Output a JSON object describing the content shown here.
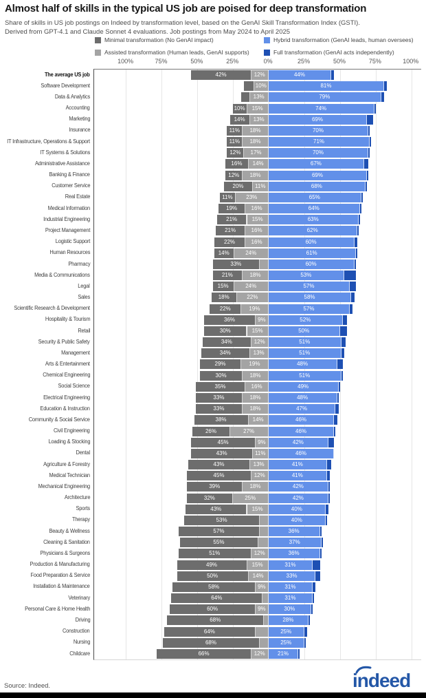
{
  "header": {
    "title": "Almost half of skills in the typical US job are poised for deep transformation",
    "subtitle_line1": "Share of skills in US job postings on Indeed by transformation level, based on the GenAI Skill Transformation Index (GSTI).",
    "subtitle_line2": "Derived from GPT-4.1 and Claude Sonnet 4 evaluations. Job postings from May 2024 to April 2025"
  },
  "legend": {
    "items": [
      {
        "label": "Minimal transformation (No GenAI impact)",
        "color": "#6d6d6d"
      },
      {
        "label": "Assisted transformation (Human leads, GenAI supports)",
        "color": "#a4a4a4"
      },
      {
        "label": "Hybrid transformation (GenAI leads, human oversees)",
        "color": "#6290e9"
      },
      {
        "label": "Full transformation (GenAI acts independently)",
        "color": "#1e50b3"
      }
    ]
  },
  "chart_data": {
    "type": "bar",
    "orientation": "horizontal",
    "stacked": true,
    "diverging": true,
    "title": "Almost half of skills in the typical US job are poised for deep transformation",
    "unit": "%",
    "axis": {
      "range": [
        -100,
        100
      ],
      "ticks": [
        {
          "v": -100,
          "label": "100%"
        },
        {
          "v": -75,
          "label": "75%"
        },
        {
          "v": -50,
          "label": "50%"
        },
        {
          "v": -25,
          "label": "25%"
        },
        {
          "v": 0,
          "label": "0%"
        },
        {
          "v": 25,
          "label": "25%"
        },
        {
          "v": 50,
          "label": "50%"
        },
        {
          "v": 75,
          "label": "75%"
        },
        {
          "v": 100,
          "label": "100%"
        }
      ]
    },
    "series": [
      {
        "name": "Minimal transformation (No GenAI impact)",
        "color": "#6d6d6d",
        "side": "left"
      },
      {
        "name": "Assisted transformation (Human leads, GenAI supports)",
        "color": "#a4a4a4",
        "side": "left"
      },
      {
        "name": "Hybrid transformation (GenAI leads, human oversees)",
        "color": "#6290e9",
        "side": "right"
      },
      {
        "name": "Full transformation (GenAI acts independently)",
        "color": "#1e50b3",
        "side": "right"
      }
    ],
    "rows": [
      {
        "label": "The average US job",
        "bold": true,
        "values": [
          42,
          12,
          44,
          2
        ],
        "labels": [
          "42%",
          "12%",
          "44%",
          ""
        ]
      },
      {
        "label": "Software Development",
        "values": [
          7,
          10,
          81,
          2
        ],
        "labels": [
          "",
          "10%",
          "81%",
          ""
        ]
      },
      {
        "label": "Data & Analytics",
        "values": [
          6,
          13,
          79,
          2
        ],
        "labels": [
          "",
          "13%",
          "79%",
          ""
        ]
      },
      {
        "label": "Accounting",
        "values": [
          10,
          15,
          74,
          1
        ],
        "labels": [
          "10%",
          "15%",
          "74%",
          ""
        ]
      },
      {
        "label": "Marketing",
        "values": [
          14,
          13,
          69,
          4
        ],
        "labels": [
          "14%",
          "13%",
          "69%",
          ""
        ]
      },
      {
        "label": "Insurance",
        "values": [
          11,
          18,
          70,
          1
        ],
        "labels": [
          "11%",
          "18%",
          "70%",
          ""
        ]
      },
      {
        "label": "IT Infrastructure, Operations & Support",
        "values": [
          11,
          18,
          71,
          1
        ],
        "labels": [
          "11%",
          "18%",
          "71%",
          ""
        ]
      },
      {
        "label": "IT Systems & Solutions",
        "values": [
          12,
          17,
          70,
          1
        ],
        "labels": [
          "12%",
          "17%",
          "70%",
          ""
        ]
      },
      {
        "label": "Administrative Assistance",
        "values": [
          16,
          14,
          67,
          3
        ],
        "labels": [
          "16%",
          "14%",
          "67%",
          ""
        ]
      },
      {
        "label": "Banking & Finance",
        "values": [
          12,
          18,
          69,
          1
        ],
        "labels": [
          "12%",
          "18%",
          "69%",
          ""
        ]
      },
      {
        "label": "Customer Service",
        "values": [
          20,
          11,
          68,
          1
        ],
        "labels": [
          "20%",
          "11%",
          "68%",
          ""
        ]
      },
      {
        "label": "Real Estate",
        "values": [
          11,
          23,
          65,
          1
        ],
        "labels": [
          "11%",
          "23%",
          "65%",
          ""
        ]
      },
      {
        "label": "Medical Information",
        "values": [
          19,
          16,
          64,
          1
        ],
        "labels": [
          "19%",
          "16%",
          "64%",
          ""
        ]
      },
      {
        "label": "Industrial Engineering",
        "values": [
          21,
          15,
          63,
          1
        ],
        "labels": [
          "21%",
          "15%",
          "63%",
          ""
        ]
      },
      {
        "label": "Project Management",
        "values": [
          21,
          16,
          62,
          1
        ],
        "labels": [
          "21%",
          "16%",
          "62%",
          ""
        ]
      },
      {
        "label": "Logistic Support",
        "values": [
          22,
          16,
          60,
          2
        ],
        "labels": [
          "22%",
          "16%",
          "60%",
          ""
        ]
      },
      {
        "label": "Human Resources",
        "values": [
          14,
          24,
          61,
          1
        ],
        "labels": [
          "14%",
          "24%",
          "61%",
          ""
        ]
      },
      {
        "label": "Pharmacy",
        "values": [
          33,
          6,
          60,
          1
        ],
        "labels": [
          "33%",
          "",
          "60%",
          ""
        ]
      },
      {
        "label": "Media & Communications",
        "values": [
          21,
          18,
          53,
          8
        ],
        "labels": [
          "21%",
          "18%",
          "53%",
          ""
        ]
      },
      {
        "label": "Legal",
        "values": [
          15,
          24,
          57,
          4
        ],
        "labels": [
          "15%",
          "24%",
          "57%",
          ""
        ]
      },
      {
        "label": "Sales",
        "values": [
          18,
          22,
          58,
          2
        ],
        "labels": [
          "18%",
          "22%",
          "58%",
          ""
        ]
      },
      {
        "label": "Scientific Research & Development",
        "values": [
          22,
          19,
          57,
          2
        ],
        "labels": [
          "22%",
          "19%",
          "57%",
          ""
        ]
      },
      {
        "label": "Hospitality & Tourism",
        "values": [
          36,
          9,
          52,
          3
        ],
        "labels": [
          "36%",
          "9%",
          "52%",
          ""
        ]
      },
      {
        "label": "Retail",
        "values": [
          30,
          15,
          50,
          5
        ],
        "labels": [
          "30%",
          "15%",
          "50%",
          ""
        ]
      },
      {
        "label": "Security & Public Safety",
        "values": [
          34,
          12,
          51,
          3
        ],
        "labels": [
          "34%",
          "12%",
          "51%",
          ""
        ]
      },
      {
        "label": "Management",
        "values": [
          34,
          13,
          51,
          2
        ],
        "labels": [
          "34%",
          "13%",
          "51%",
          ""
        ]
      },
      {
        "label": "Arts & Entertainment",
        "values": [
          29,
          19,
          48,
          4
        ],
        "labels": [
          "29%",
          "19%",
          "48%",
          ""
        ]
      },
      {
        "label": "Chemical Engineering",
        "values": [
          30,
          18,
          51,
          1
        ],
        "labels": [
          "30%",
          "18%",
          "51%",
          ""
        ]
      },
      {
        "label": "Social Science",
        "values": [
          35,
          16,
          49,
          1
        ],
        "labels": [
          "35%",
          "16%",
          "49%",
          ""
        ]
      },
      {
        "label": "Electrical Engineering",
        "values": [
          33,
          18,
          48,
          1
        ],
        "labels": [
          "33%",
          "18%",
          "48%",
          ""
        ]
      },
      {
        "label": "Education & Instruction",
        "values": [
          33,
          18,
          47,
          2
        ],
        "labels": [
          "33%",
          "18%",
          "47%",
          ""
        ]
      },
      {
        "label": "Community & Social Service",
        "values": [
          38,
          14,
          46,
          2
        ],
        "labels": [
          "38%",
          "14%",
          "46%",
          ""
        ]
      },
      {
        "label": "Civil Engineering",
        "values": [
          26,
          27,
          46,
          1
        ],
        "labels": [
          "26%",
          "27%",
          "46%",
          ""
        ]
      },
      {
        "label": "Loading & Stocking",
        "values": [
          45,
          9,
          42,
          4
        ],
        "labels": [
          "45%",
          "9%",
          "42%",
          ""
        ]
      },
      {
        "label": "Dental",
        "values": [
          43,
          11,
          46,
          0
        ],
        "labels": [
          "43%",
          "11%",
          "46%",
          ""
        ]
      },
      {
        "label": "Agriculture & Forestry",
        "values": [
          43,
          13,
          41,
          3
        ],
        "labels": [
          "43%",
          "13%",
          "41%",
          ""
        ]
      },
      {
        "label": "Medical Technician",
        "values": [
          45,
          12,
          41,
          2
        ],
        "labels": [
          "45%",
          "12%",
          "41%",
          ""
        ]
      },
      {
        "label": "Mechanical Engineering",
        "values": [
          39,
          18,
          42,
          1
        ],
        "labels": [
          "39%",
          "18%",
          "42%",
          ""
        ]
      },
      {
        "label": "Architecture",
        "values": [
          32,
          25,
          42,
          1
        ],
        "labels": [
          "32%",
          "25%",
          "42%",
          ""
        ]
      },
      {
        "label": "Sports",
        "values": [
          43,
          15,
          40,
          2
        ],
        "labels": [
          "43%",
          "15%",
          "40%",
          ""
        ]
      },
      {
        "label": "Therapy",
        "values": [
          53,
          6,
          40,
          1
        ],
        "labels": [
          "53%",
          "",
          "40%",
          ""
        ]
      },
      {
        "label": "Beauty & Wellness",
        "values": [
          57,
          6,
          36,
          1
        ],
        "labels": [
          "57%",
          "",
          "36%",
          ""
        ]
      },
      {
        "label": "Cleaning & Sanitation",
        "values": [
          55,
          7,
          37,
          1
        ],
        "labels": [
          "55%",
          "",
          "37%",
          ""
        ]
      },
      {
        "label": "Physicians & Surgeons",
        "values": [
          51,
          12,
          36,
          1
        ],
        "labels": [
          "51%",
          "12%",
          "36%",
          ""
        ]
      },
      {
        "label": "Production & Manufacturing",
        "values": [
          49,
          15,
          31,
          5
        ],
        "labels": [
          "49%",
          "15%",
          "31%",
          ""
        ]
      },
      {
        "label": "Food Preparation & Service",
        "values": [
          50,
          14,
          33,
          3
        ],
        "labels": [
          "50%",
          "14%",
          "33%",
          ""
        ]
      },
      {
        "label": "Installation & Maintenance",
        "values": [
          58,
          9,
          31,
          2
        ],
        "labels": [
          "58%",
          "9%",
          "31%",
          ""
        ]
      },
      {
        "label": "Veterinary",
        "values": [
          64,
          4,
          31,
          1
        ],
        "labels": [
          "64%",
          "",
          "31%",
          ""
        ]
      },
      {
        "label": "Personal Care & Home Health",
        "values": [
          60,
          9,
          30,
          1
        ],
        "labels": [
          "60%",
          "9%",
          "30%",
          ""
        ]
      },
      {
        "label": "Driving",
        "values": [
          68,
          3,
          28,
          1
        ],
        "labels": [
          "68%",
          "",
          "28%",
          ""
        ]
      },
      {
        "label": "Construction",
        "values": [
          64,
          9,
          25,
          2
        ],
        "labels": [
          "64%",
          "",
          "25%",
          ""
        ]
      },
      {
        "label": "Nursing",
        "values": [
          68,
          6,
          25,
          1
        ],
        "labels": [
          "68%",
          "",
          "25%",
          ""
        ]
      },
      {
        "label": "Childcare",
        "values": [
          66,
          12,
          21,
          1
        ],
        "labels": [
          "66%",
          "12%",
          "21%",
          ""
        ]
      }
    ]
  },
  "footer": {
    "source": "Source: Indeed.",
    "logo_text": "indeed",
    "logo_color": "#2457a7"
  }
}
